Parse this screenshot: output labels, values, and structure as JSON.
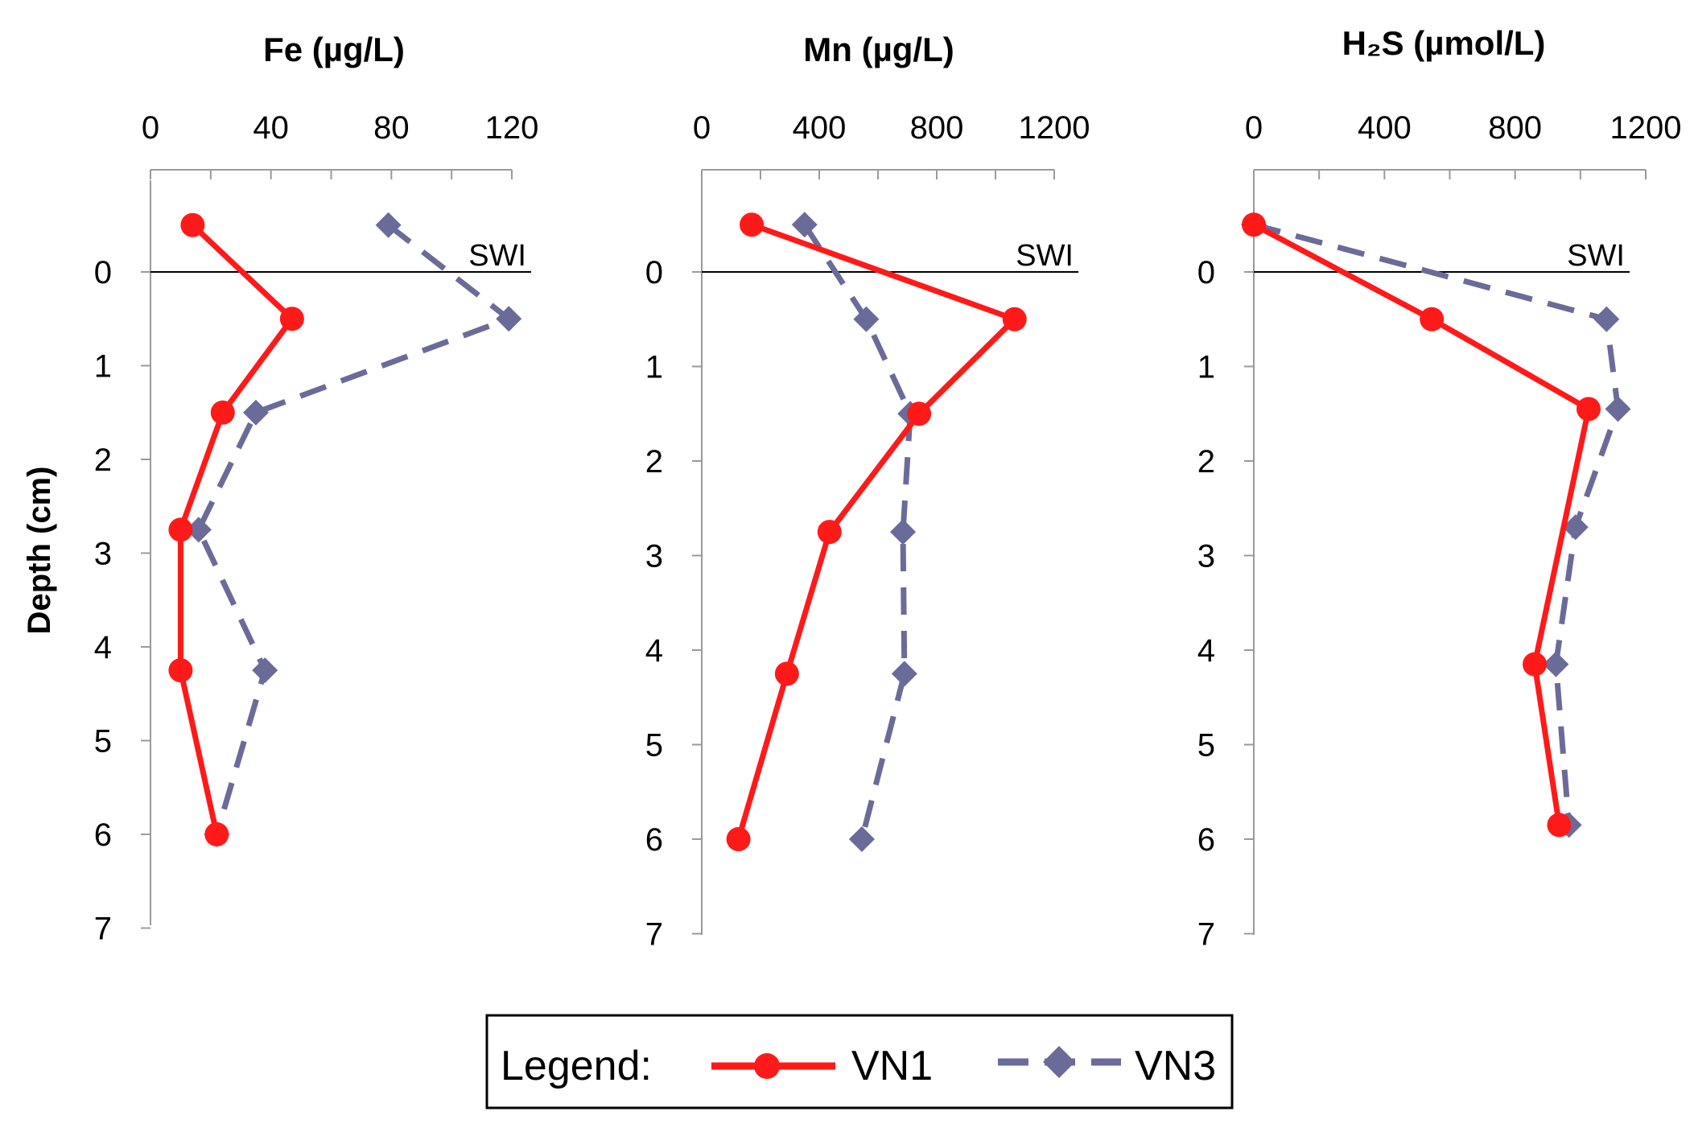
{
  "chart_data": [
    {
      "type": "line",
      "title": "Fe (µg/L)",
      "xlabel": "Fe (µg/L)",
      "ylabel": "Depth (cm)",
      "xlim": [
        0,
        120
      ],
      "xticks": [
        0,
        40,
        80,
        120
      ],
      "ylim": [
        -1,
        7
      ],
      "yticks": [
        0,
        1,
        2,
        3,
        4,
        5,
        6,
        7
      ],
      "reference_line": {
        "y": 0,
        "label": "SWI"
      },
      "series": [
        {
          "name": "VN1",
          "color": "#ff1a1a",
          "marker": "circle",
          "dash": "solid",
          "x": [
            14,
            47,
            24,
            10,
            10,
            22
          ],
          "y": [
            -0.5,
            0.5,
            1.5,
            2.75,
            4.25,
            6.0
          ]
        },
        {
          "name": "VN3",
          "color": "#6b6b9a",
          "marker": "diamond",
          "dash": "dashed",
          "x": [
            79,
            119,
            35,
            16,
            38,
            22
          ],
          "y": [
            -0.5,
            0.5,
            1.5,
            2.75,
            4.25,
            6.0
          ]
        }
      ]
    },
    {
      "type": "line",
      "title": "Mn (µg/L)",
      "xlabel": "Mn (µg/L)",
      "ylabel": "Depth (cm)",
      "xlim": [
        0,
        1200
      ],
      "xticks": [
        0,
        400,
        800,
        1200
      ],
      "ylim": [
        -1,
        7
      ],
      "yticks": [
        0,
        1,
        2,
        3,
        4,
        5,
        6,
        7
      ],
      "reference_line": {
        "y": 0,
        "label": "SWI"
      },
      "series": [
        {
          "name": "VN1",
          "color": "#ff1a1a",
          "marker": "circle",
          "dash": "solid",
          "x": [
            170,
            1065,
            740,
            435,
            290,
            125
          ],
          "y": [
            -0.5,
            0.5,
            1.5,
            2.75,
            4.25,
            6.0
          ]
        },
        {
          "name": "VN3",
          "color": "#6b6b9a",
          "marker": "diamond",
          "dash": "dashed",
          "x": [
            350,
            560,
            710,
            685,
            690,
            545
          ],
          "y": [
            -0.5,
            0.5,
            1.5,
            2.75,
            4.25,
            6.0
          ]
        }
      ]
    },
    {
      "type": "line",
      "title": "H₂S (µmol/L)",
      "xlabel": "H₂S (µmol/L)",
      "ylabel": "Depth (cm)",
      "xlim": [
        0,
        1200
      ],
      "xticks": [
        0,
        400,
        800,
        1200
      ],
      "ylim": [
        -1,
        7
      ],
      "yticks": [
        0,
        1,
        2,
        3,
        4,
        5,
        6,
        7
      ],
      "reference_line": {
        "y": 0,
        "label": "SWI"
      },
      "series": [
        {
          "name": "VN1",
          "color": "#ff1a1a",
          "marker": "circle",
          "dash": "solid",
          "x": [
            0,
            545,
            1025,
            860,
            935
          ],
          "y": [
            -0.5,
            0.5,
            1.45,
            4.15,
            5.85
          ]
        },
        {
          "name": "VN3",
          "color": "#6b6b9a",
          "marker": "diamond",
          "dash": "dashed",
          "x": [
            0,
            1080,
            1115,
            985,
            925,
            965
          ],
          "y": [
            -0.5,
            0.5,
            1.45,
            2.7,
            4.15,
            5.85
          ]
        }
      ]
    }
  ],
  "legend": {
    "title": "Legend:",
    "entries": [
      {
        "name": "VN1",
        "color": "#ff1a1a",
        "marker": "circle",
        "dash": "solid"
      },
      {
        "name": "VN3",
        "color": "#6b6b9a",
        "marker": "diamond",
        "dash": "dashed"
      }
    ]
  }
}
